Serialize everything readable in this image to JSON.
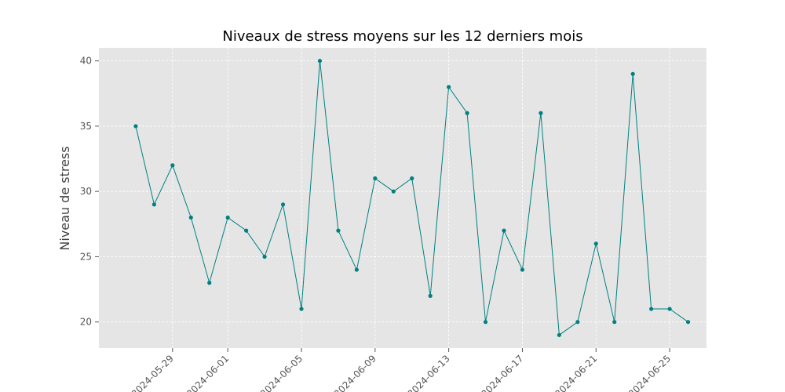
{
  "chart_data": {
    "type": "line",
    "title": "Niveaux de stress moyens sur les 12 derniers mois",
    "xlabel": "",
    "ylabel": "Niveau de stress",
    "x": [
      "2024-05-27",
      "2024-05-28",
      "2024-05-29",
      "2024-05-30",
      "2024-05-31",
      "2024-06-01",
      "2024-06-02",
      "2024-06-03",
      "2024-06-04",
      "2024-06-05",
      "2024-06-06",
      "2024-06-07",
      "2024-06-08",
      "2024-06-09",
      "2024-06-10",
      "2024-06-11",
      "2024-06-12",
      "2024-06-13",
      "2024-06-14",
      "2024-06-15",
      "2024-06-16",
      "2024-06-17",
      "2024-06-18",
      "2024-06-19",
      "2024-06-20",
      "2024-06-21",
      "2024-06-22",
      "2024-06-23",
      "2024-06-24",
      "2024-06-25",
      "2024-06-26"
    ],
    "series": [
      {
        "values": [
          35,
          29,
          32,
          28,
          23,
          28,
          27,
          25,
          29,
          21,
          40,
          27,
          24,
          31,
          30,
          31,
          22,
          38,
          36,
          20,
          27,
          24,
          36,
          19,
          20,
          26,
          20,
          39,
          21,
          21,
          20
        ],
        "color": "#008080"
      }
    ],
    "xticks": [
      "2024-05-29",
      "2024-06-01",
      "2024-06-05",
      "2024-06-09",
      "2024-06-13",
      "2024-06-17",
      "2024-06-21",
      "2024-06-25"
    ],
    "yticks": [
      20,
      25,
      30,
      35,
      40
    ],
    "xlim": [
      "2024-05-25",
      "2024-06-27"
    ],
    "ylim": [
      18,
      40
    ],
    "grid": true,
    "background": "#e5e5e5",
    "legend": "none"
  }
}
